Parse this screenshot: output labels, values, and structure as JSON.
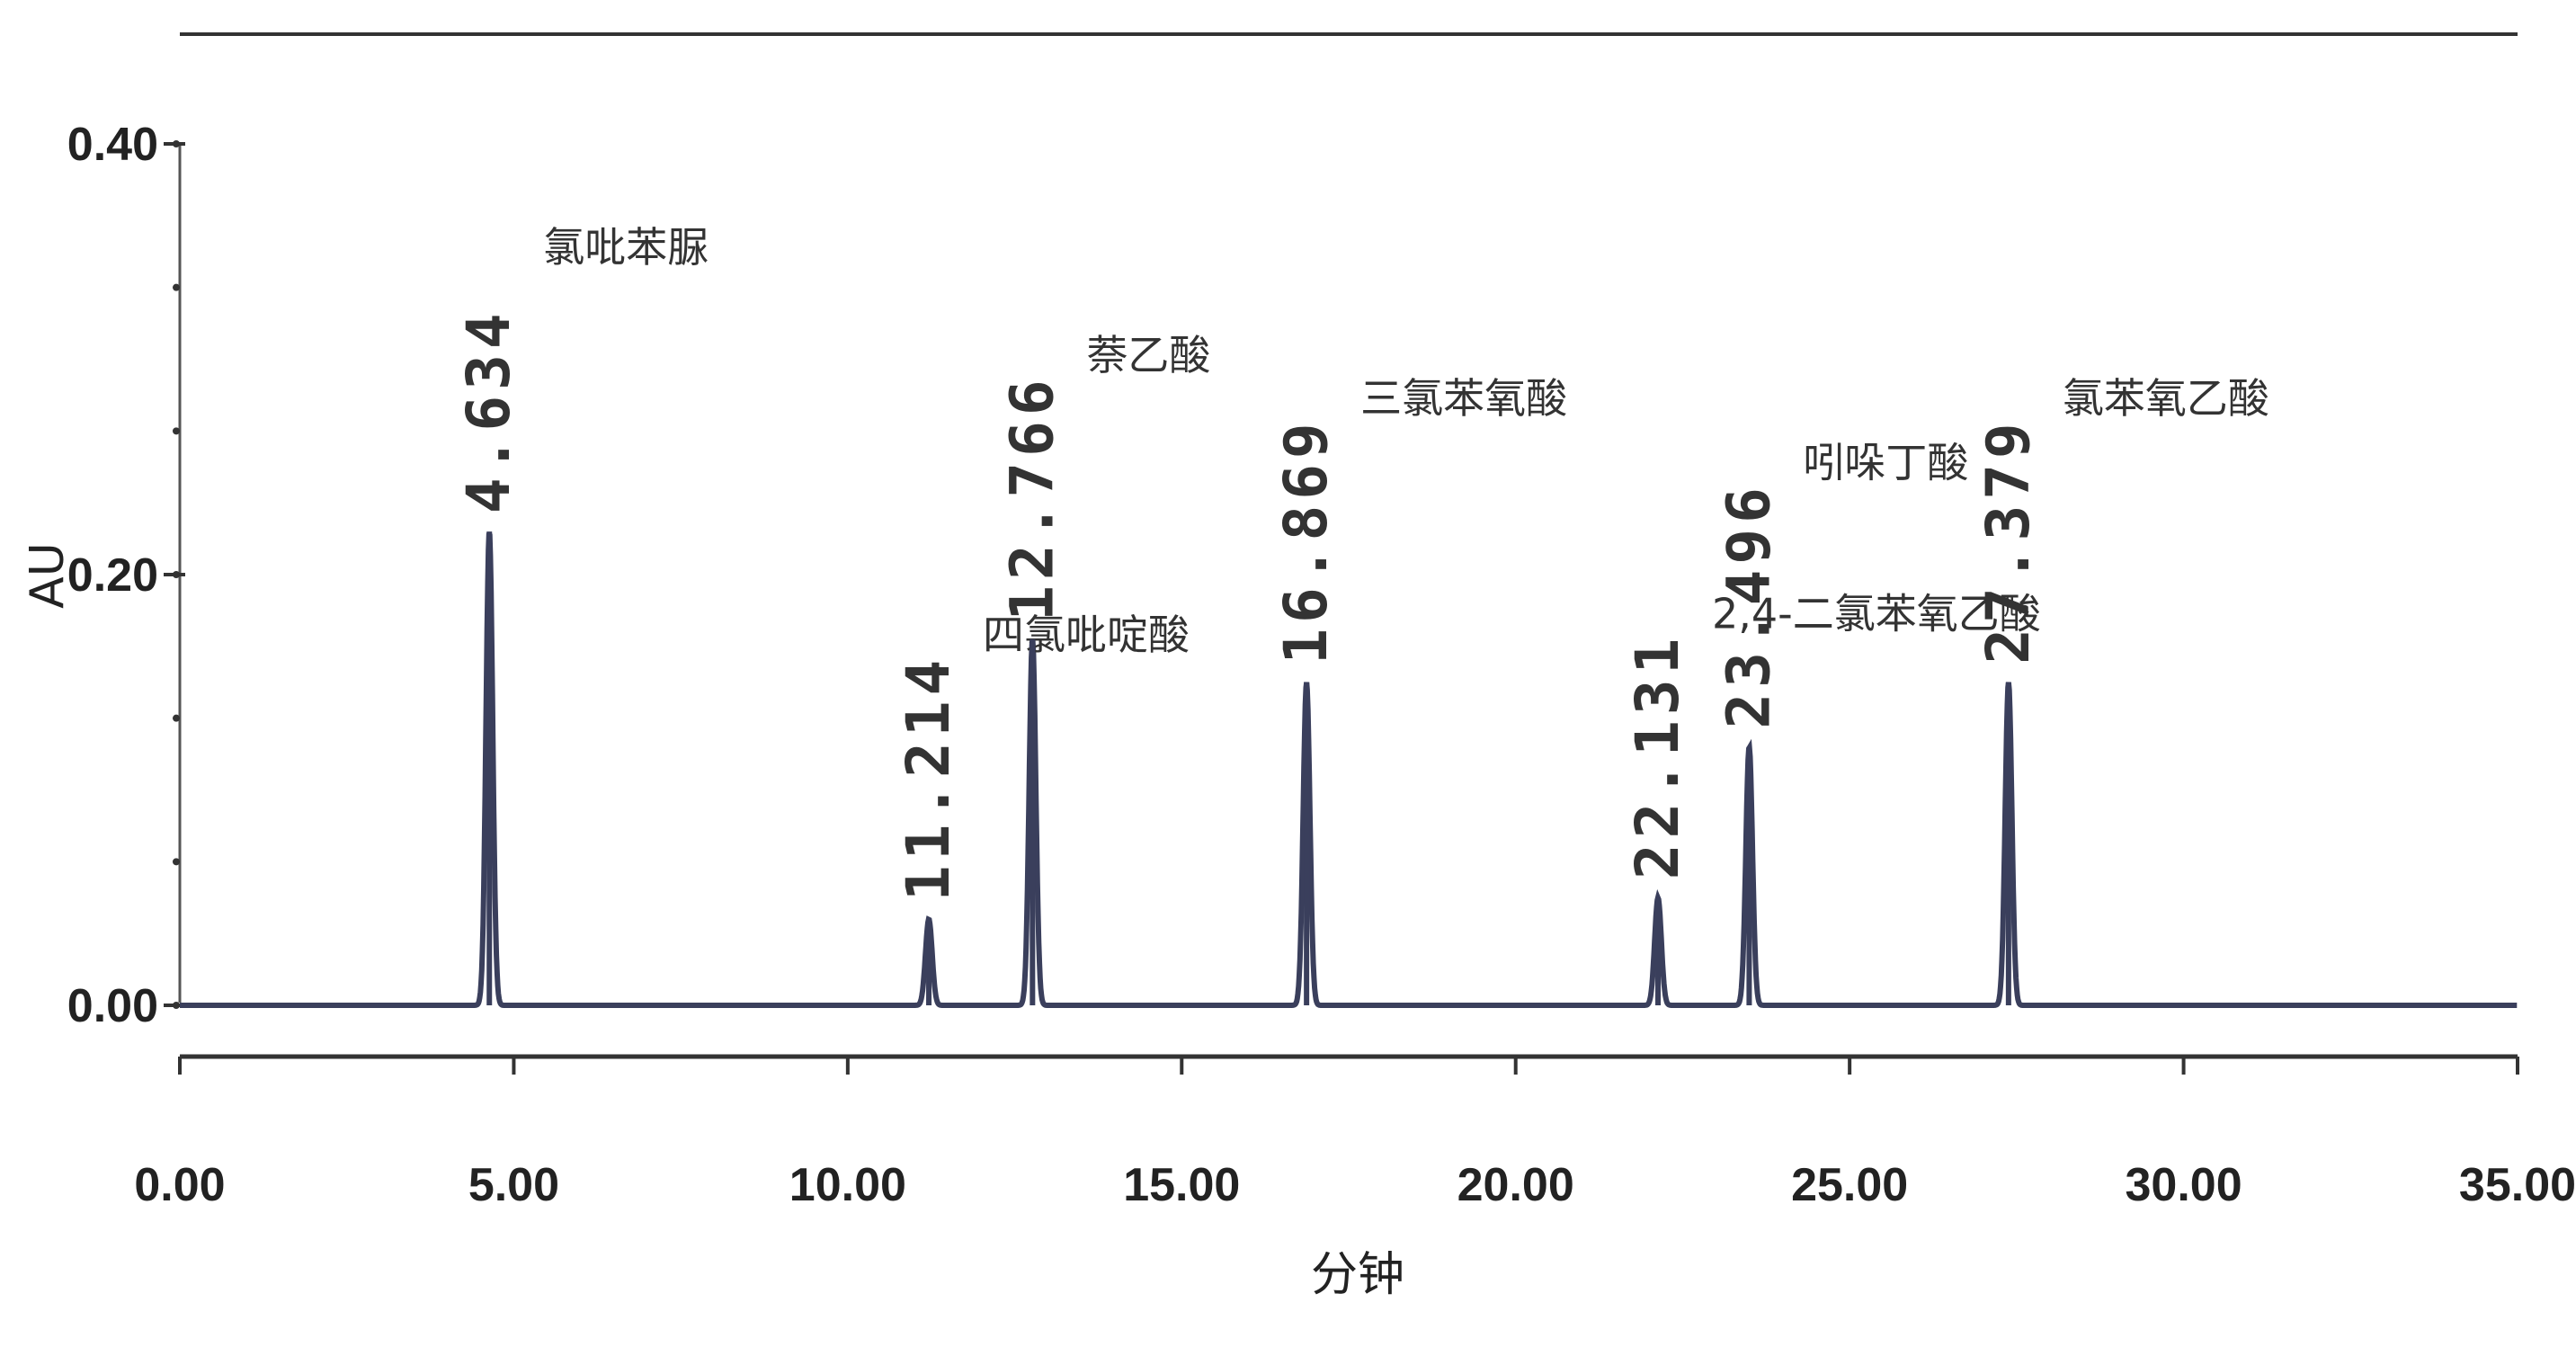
{
  "chart_data": {
    "type": "line",
    "xlabel": "分钟",
    "ylabel": "AU",
    "xlim": [
      0,
      35
    ],
    "ylim": [
      0,
      0.4
    ],
    "x_ticks": [
      "0.00",
      "5.00",
      "10.00",
      "15.00",
      "20.00",
      "25.00",
      "30.00",
      "35.00"
    ],
    "y_ticks": [
      "0.00",
      "0.20",
      "0.40"
    ],
    "grid": false,
    "peaks": [
      {
        "rt": 4.634,
        "rt_label": "4.634",
        "height": 0.22,
        "name": "氯吡苯脲"
      },
      {
        "rt": 11.214,
        "rt_label": "11.214",
        "height": 0.04,
        "name": "四氯吡啶酸"
      },
      {
        "rt": 12.766,
        "rt_label": "12.766",
        "height": 0.17,
        "name": "萘乙酸"
      },
      {
        "rt": 16.869,
        "rt_label": "16.869",
        "height": 0.15,
        "name": "三氯苯氧酸"
      },
      {
        "rt": 22.131,
        "rt_label": "22.131",
        "height": 0.05,
        "name": "2,4-二氯苯氧乙酸"
      },
      {
        "rt": 23.496,
        "rt_label": "23.496",
        "height": 0.12,
        "name": "吲哚丁酸"
      },
      {
        "rt": 27.379,
        "rt_label": "27.379",
        "height": 0.15,
        "name": "氯苯氧乙酸"
      }
    ]
  }
}
